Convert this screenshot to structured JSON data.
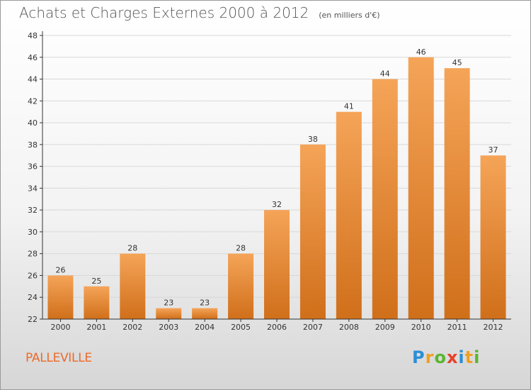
{
  "title": "Achats et Charges Externes 2000 à 2012",
  "unit_note": "(en milliers d'€)",
  "commune": "PALLEVILLE",
  "logo": {
    "text": "Proxiti",
    "letter_colors": [
      "#2a8fd6",
      "#f0a020",
      "#5bb531",
      "#e8402a",
      "#2a8fd6",
      "#f0a020",
      "#5bb531"
    ]
  },
  "colors": {
    "bar_top": "#f5a458",
    "bar_bottom": "#d06f1a",
    "grid": "#d8d8d8",
    "axis": "#333333",
    "text": "#333333"
  },
  "chart_data": {
    "type": "bar",
    "categories": [
      "2000",
      "2001",
      "2002",
      "2003",
      "2004",
      "2005",
      "2006",
      "2007",
      "2008",
      "2009",
      "2010",
      "2011",
      "2012"
    ],
    "values": [
      26,
      25,
      28,
      23,
      23,
      28,
      32,
      38,
      41,
      44,
      46,
      45,
      37
    ],
    "ylim": [
      22,
      48
    ],
    "yticks": [
      22,
      24,
      26,
      28,
      30,
      32,
      34,
      36,
      38,
      40,
      42,
      44,
      46,
      48
    ],
    "grid": true,
    "data_labels": true
  }
}
